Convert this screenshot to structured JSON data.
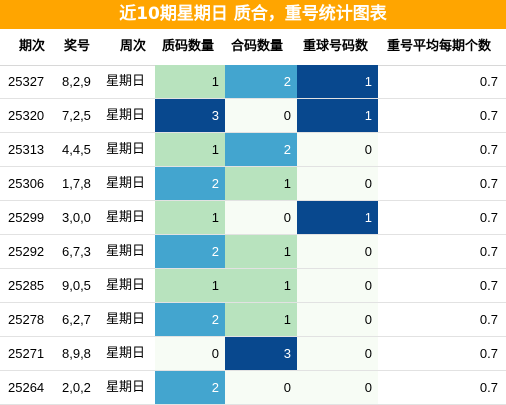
{
  "title": "近10期星期日 质合，重号统计图表",
  "headers": {
    "issue": "期次",
    "prize": "奖号",
    "week": "周次",
    "zhi": "质码数量",
    "he": "合码数量",
    "zhong": "重球号码数",
    "avg": "重号平均每期个数"
  },
  "colors": {
    "title_bg": "#FFA500",
    "level_0": "#F7FCF5",
    "level_1": "#B8E3BE",
    "level_2": "#43A5CF",
    "level_3": "#08488E",
    "dark_text": "#ffffff",
    "light_text": "#000000"
  },
  "rows": [
    {
      "issue": "25327",
      "prize": "8,2,9",
      "week": "星期日",
      "zhi": 1,
      "he": 2,
      "zhong": 1,
      "avg": "0.7"
    },
    {
      "issue": "25320",
      "prize": "7,2,5",
      "week": "星期日",
      "zhi": 3,
      "he": 0,
      "zhong": 1,
      "avg": "0.7"
    },
    {
      "issue": "25313",
      "prize": "4,4,5",
      "week": "星期日",
      "zhi": 1,
      "he": 2,
      "zhong": 0,
      "avg": "0.7"
    },
    {
      "issue": "25306",
      "prize": "1,7,8",
      "week": "星期日",
      "zhi": 2,
      "he": 1,
      "zhong": 0,
      "avg": "0.7"
    },
    {
      "issue": "25299",
      "prize": "3,0,0",
      "week": "星期日",
      "zhi": 1,
      "he": 0,
      "zhong": 1,
      "avg": "0.7"
    },
    {
      "issue": "25292",
      "prize": "6,7,3",
      "week": "星期日",
      "zhi": 2,
      "he": 1,
      "zhong": 0,
      "avg": "0.7"
    },
    {
      "issue": "25285",
      "prize": "9,0,5",
      "week": "星期日",
      "zhi": 1,
      "he": 1,
      "zhong": 0,
      "avg": "0.7"
    },
    {
      "issue": "25278",
      "prize": "6,2,7",
      "week": "星期日",
      "zhi": 2,
      "he": 1,
      "zhong": 0,
      "avg": "0.7"
    },
    {
      "issue": "25271",
      "prize": "8,9,8",
      "week": "星期日",
      "zhi": 0,
      "he": 3,
      "zhong": 0,
      "avg": "0.7"
    },
    {
      "issue": "25264",
      "prize": "2,0,2",
      "week": "星期日",
      "zhi": 2,
      "he": 0,
      "zhong": 0,
      "avg": "0.7"
    }
  ]
}
